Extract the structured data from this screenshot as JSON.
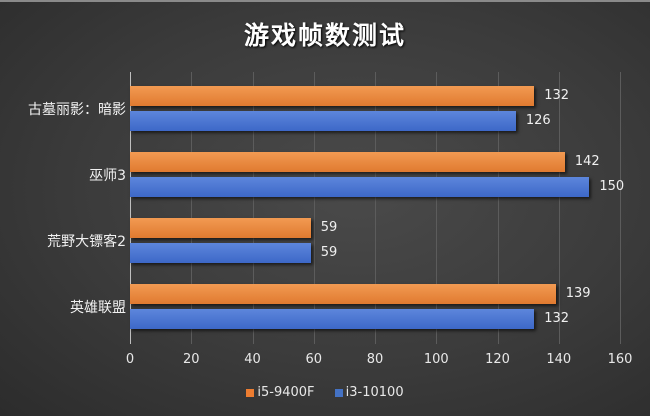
{
  "title": "游戏帧数测试",
  "colors": {
    "i5-9400F": "#ed7d31",
    "i3-10100": "#4472c4",
    "background": "#3a3a3a"
  },
  "axis": {
    "ticks": [
      "0",
      "20",
      "40",
      "60",
      "80",
      "100",
      "120",
      "140",
      "160"
    ],
    "min": 0,
    "max": 160
  },
  "categories": [
    {
      "label": "古墓丽影：暗影",
      "i5": "132",
      "i3": "126"
    },
    {
      "label": "巫师3",
      "i5": "142",
      "i3": "150"
    },
    {
      "label": "荒野大镖客2",
      "i5": "59",
      "i3": "59"
    },
    {
      "label": "英雄联盟",
      "i5": "139",
      "i3": "132"
    }
  ],
  "legend": [
    {
      "label": "i5-9400F",
      "color": "#ed7d31"
    },
    {
      "label": "i3-10100",
      "color": "#4472c4"
    }
  ],
  "chart_data": {
    "type": "bar",
    "orientation": "horizontal",
    "title": "游戏帧数测试",
    "categories": [
      "古墓丽影：暗影",
      "巫师3",
      "荒野大镖客2",
      "英雄联盟"
    ],
    "series": [
      {
        "name": "i5-9400F",
        "color": "#ed7d31",
        "values": [
          132,
          142,
          59,
          139
        ]
      },
      {
        "name": "i3-10100",
        "color": "#4472c4",
        "values": [
          126,
          150,
          59,
          132
        ]
      }
    ],
    "xlabel": "",
    "ylabel": "",
    "xlim": [
      0,
      160
    ],
    "xticks": [
      0,
      20,
      40,
      60,
      80,
      100,
      120,
      140,
      160
    ],
    "grid": true,
    "data_labels": true,
    "legend_position": "bottom"
  }
}
